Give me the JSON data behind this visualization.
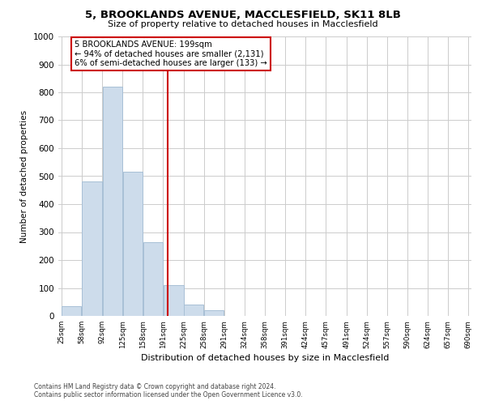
{
  "title": "5, BROOKLANDS AVENUE, MACCLESFIELD, SK11 8LB",
  "subtitle": "Size of property relative to detached houses in Macclesfield",
  "xlabel": "Distribution of detached houses by size in Macclesfield",
  "ylabel": "Number of detached properties",
  "bar_edges": [
    25,
    58,
    92,
    125,
    158,
    191,
    225,
    258,
    291,
    324,
    358,
    391,
    424,
    457,
    491,
    524,
    557,
    590,
    624,
    657,
    690
  ],
  "bar_heights": [
    35,
    480,
    820,
    515,
    263,
    110,
    40,
    20,
    0,
    0,
    0,
    0,
    0,
    0,
    0,
    0,
    0,
    0,
    0,
    0
  ],
  "bar_color": "#cddceb",
  "bar_edgecolor": "#a8c0d6",
  "vline_x": 199,
  "vline_color": "#cc0000",
  "annotation_title": "5 BROOKLANDS AVENUE: 199sqm",
  "annotation_line1": "← 94% of detached houses are smaller (2,131)",
  "annotation_line2": "6% of semi-detached houses are larger (133) →",
  "ylim": [
    0,
    1000
  ],
  "yticks": [
    0,
    100,
    200,
    300,
    400,
    500,
    600,
    700,
    800,
    900,
    1000
  ],
  "tick_labels": [
    "25sqm",
    "58sqm",
    "92sqm",
    "125sqm",
    "158sqm",
    "191sqm",
    "225sqm",
    "258sqm",
    "291sqm",
    "324sqm",
    "358sqm",
    "391sqm",
    "424sqm",
    "457sqm",
    "491sqm",
    "524sqm",
    "557sqm",
    "590sqm",
    "624sqm",
    "657sqm",
    "690sqm"
  ],
  "footer_line1": "Contains HM Land Registry data © Crown copyright and database right 2024.",
  "footer_line2": "Contains public sector information licensed under the Open Government Licence v3.0.",
  "background_color": "#ffffff",
  "grid_color": "#cccccc"
}
